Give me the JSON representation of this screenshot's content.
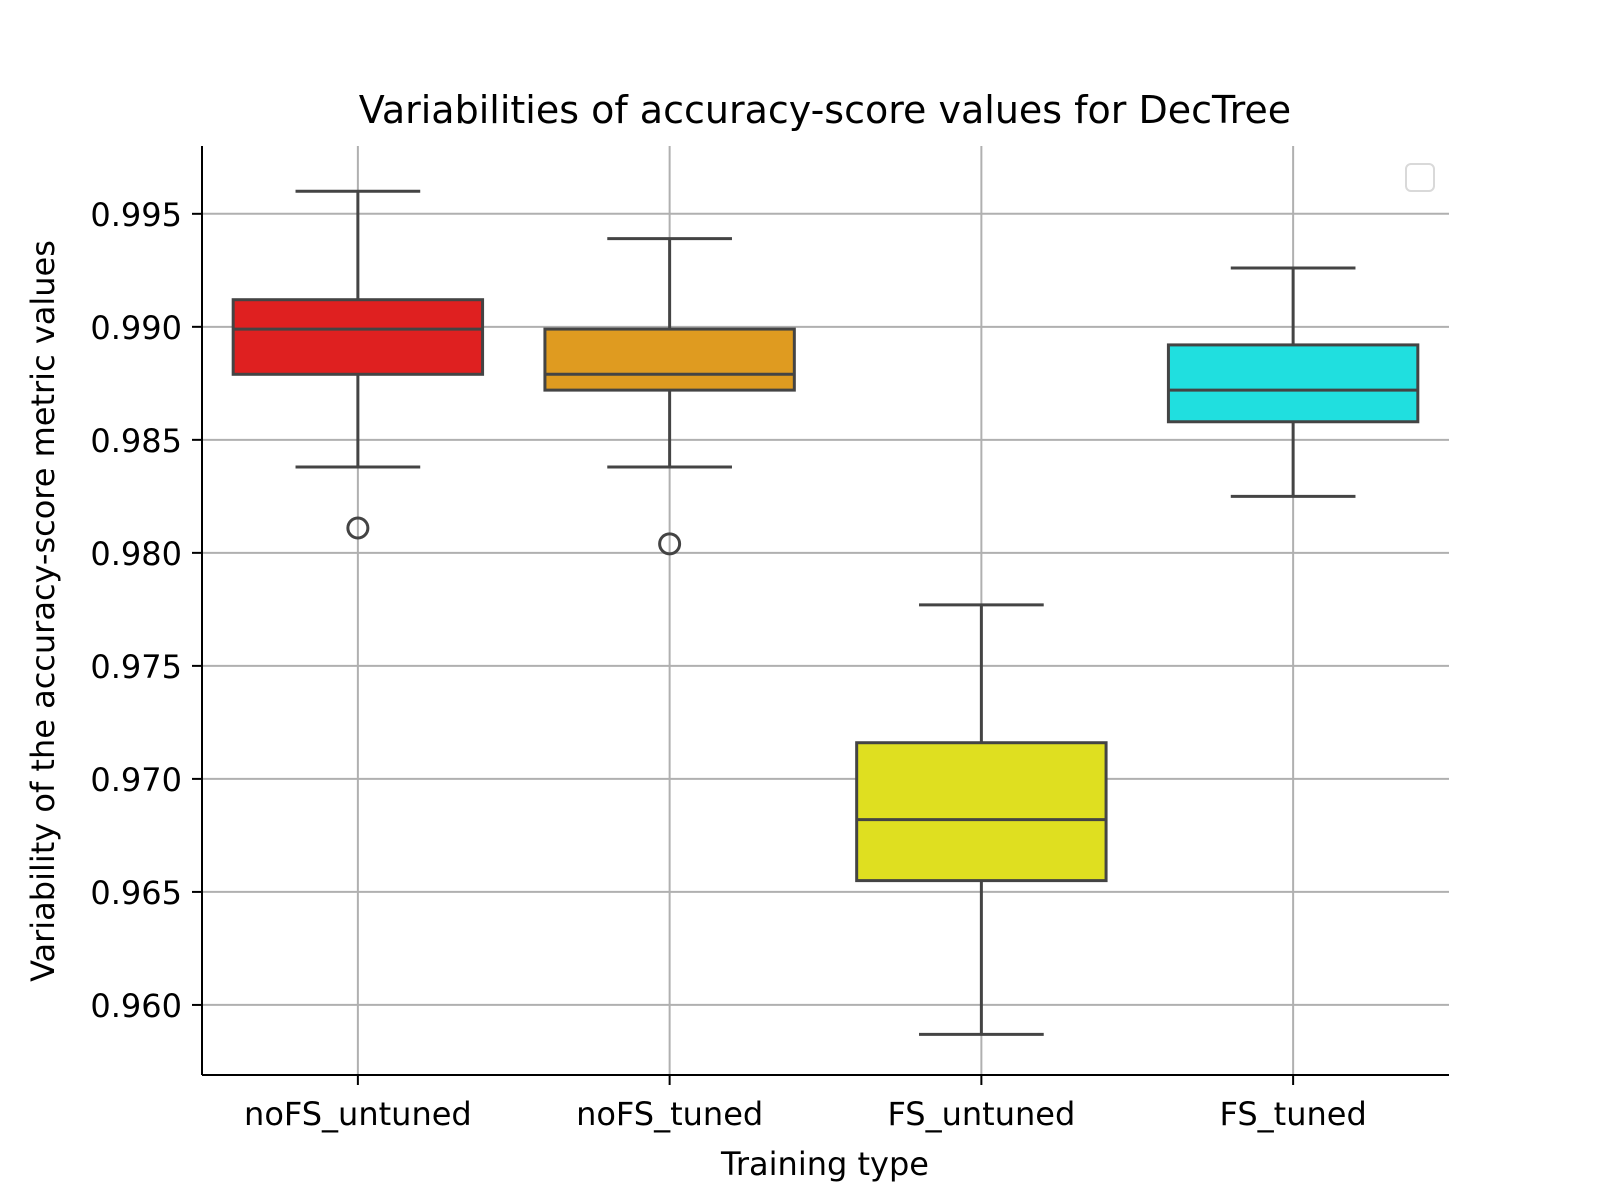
{
  "chart_data": {
    "type": "box",
    "title": "Variabilities of accuracy-score values for DecTree",
    "xlabel": "Training type",
    "ylabel": "Variability of the accuracy-score metric values",
    "categories": [
      "noFS_untuned",
      "noFS_tuned",
      "FS_untuned",
      "FS_tuned"
    ],
    "ylim": [
      0.9569,
      0.998
    ],
    "yticks": [
      0.96,
      0.965,
      0.97,
      0.975,
      0.98,
      0.985,
      0.99,
      0.995
    ],
    "ytick_labels": [
      "0.960",
      "0.965",
      "0.970",
      "0.975",
      "0.980",
      "0.985",
      "0.990",
      "0.995"
    ],
    "grid": true,
    "legend": "top-right (empty)",
    "boxes": [
      {
        "category": "noFS_untuned",
        "whisker_low": 0.9838,
        "q1": 0.9879,
        "median": 0.9899,
        "q3": 0.9912,
        "whisker_high": 0.996,
        "outliers": [
          0.9811
        ],
        "color": "#df2020"
      },
      {
        "category": "noFS_tuned",
        "whisker_low": 0.9838,
        "q1": 0.9872,
        "median": 0.9879,
        "q3": 0.9899,
        "whisker_high": 0.9939,
        "outliers": [
          0.9804
        ],
        "color": "#df9b20"
      },
      {
        "category": "FS_untuned",
        "whisker_low": 0.9587,
        "q1": 0.9655,
        "median": 0.9682,
        "q3": 0.9716,
        "whisker_high": 0.9777,
        "outliers": [],
        "color": "#dfdf20"
      },
      {
        "category": "FS_tuned",
        "whisker_low": 0.9825,
        "q1": 0.9858,
        "median": 0.9872,
        "q3": 0.9892,
        "whisker_high": 0.9926,
        "outliers": [],
        "color": "#20dfdf"
      }
    ],
    "colors": {
      "line": "#444444",
      "grid": "#b0b0b0",
      "axis": "#000000"
    }
  }
}
